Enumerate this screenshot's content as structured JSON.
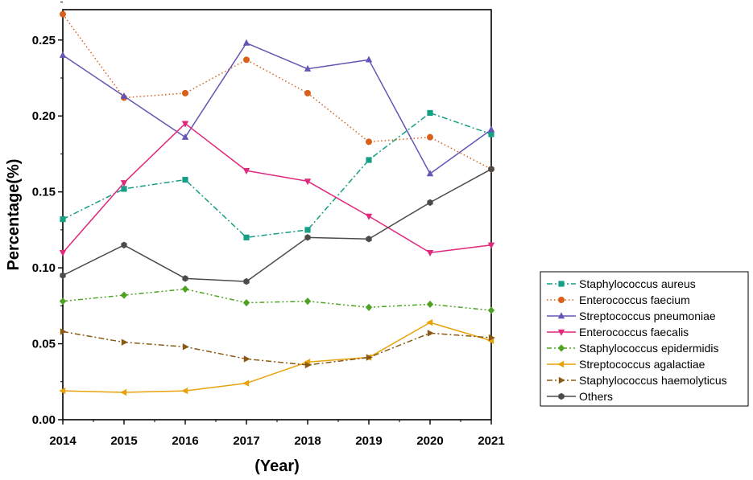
{
  "chart_data": {
    "type": "line",
    "title": "",
    "xlabel": "(Year)",
    "ylabel": "Percentage(%)",
    "x": [
      2014,
      2015,
      2016,
      2017,
      2018,
      2019,
      2020,
      2021
    ],
    "x_tick_labels": [
      "2014",
      "2015",
      "2016",
      "2017",
      "2018",
      "2019",
      "2020",
      "2021"
    ],
    "ylim": [
      0,
      0.27
    ],
    "y_ticks": [
      0,
      0.05,
      0.1,
      0.15,
      0.2,
      0.25
    ],
    "y_tick_labels": [
      "0.00",
      "0.05",
      "0.10",
      "0.15",
      "0.20",
      "0.25"
    ],
    "grid": false,
    "legend_position": "right",
    "series": [
      {
        "name": "Staphylococcus aureus",
        "color": "#159f84",
        "dash": "dashdot",
        "marker": "square",
        "values": [
          0.132,
          0.152,
          0.158,
          0.12,
          0.125,
          0.171,
          0.202,
          0.188
        ]
      },
      {
        "name": "Enterococcus faecium",
        "color": "#d9601a",
        "dash": "dotted",
        "marker": "circle",
        "values": [
          0.267,
          0.212,
          0.215,
          0.237,
          0.215,
          0.183,
          0.186,
          0.165
        ]
      },
      {
        "name": "Streptococcus pneumoniae",
        "color": "#6257b5",
        "dash": "solid",
        "marker": "triangle-up",
        "values": [
          0.24,
          0.213,
          0.186,
          0.248,
          0.231,
          0.237,
          0.162,
          0.191
        ]
      },
      {
        "name": "Enterococcus faecalis",
        "color": "#e0287c",
        "dash": "solid",
        "marker": "triangle-down",
        "values": [
          0.11,
          0.156,
          0.195,
          0.164,
          0.157,
          0.134,
          0.11,
          0.115
        ]
      },
      {
        "name": "Staphylococcus epidermidis",
        "color": "#4da321",
        "dash": "dashdotdot",
        "marker": "diamond",
        "values": [
          0.078,
          0.082,
          0.086,
          0.077,
          0.078,
          0.074,
          0.076,
          0.072
        ]
      },
      {
        "name": "Streptococcus agalactiae",
        "color": "#e9a30a",
        "dash": "solid",
        "marker": "triangle-left",
        "values": [
          0.019,
          0.018,
          0.019,
          0.024,
          0.038,
          0.041,
          0.064,
          0.052
        ]
      },
      {
        "name": "Staphylococcus haemolyticus",
        "color": "#8a5a14",
        "dash": "dashdot",
        "marker": "triangle-right",
        "values": [
          0.058,
          0.051,
          0.048,
          0.04,
          0.036,
          0.041,
          0.057,
          0.054
        ]
      },
      {
        "name": "Others",
        "color": "#4b4b4b",
        "dash": "solid",
        "marker": "hexagon",
        "values": [
          0.095,
          0.115,
          0.093,
          0.091,
          0.12,
          0.119,
          0.143,
          0.165
        ]
      }
    ]
  }
}
